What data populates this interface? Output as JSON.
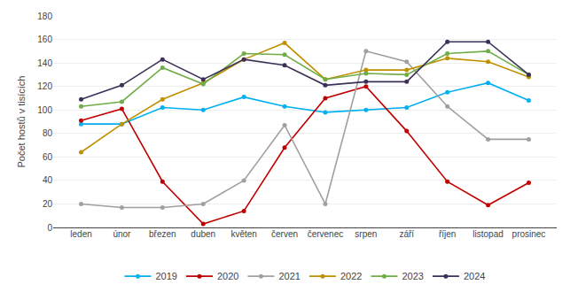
{
  "chart_data": {
    "type": "line",
    "y_label": "Počet hostů v tisících",
    "categories": [
      "leden",
      "únor",
      "březen",
      "duben",
      "květen",
      "červen",
      "červenec",
      "srpen",
      "září",
      "říjen",
      "listopad",
      "prosinec"
    ],
    "series": [
      {
        "name": "2019",
        "color": "#00B0F0",
        "values": [
          88,
          88,
          102,
          100,
          111,
          103,
          98,
          100,
          102,
          115,
          123,
          108
        ]
      },
      {
        "name": "2020",
        "color": "#C00000",
        "values": [
          91,
          101,
          39,
          3,
          14,
          68,
          110,
          120,
          82,
          39,
          19,
          38
        ]
      },
      {
        "name": "2021",
        "color": "#A0A0A0",
        "values": [
          20,
          17,
          17,
          20,
          40,
          87,
          20,
          150,
          141,
          103,
          75,
          75
        ]
      },
      {
        "name": "2022",
        "color": "#C09000",
        "values": [
          64,
          88,
          109,
          123,
          143,
          157,
          126,
          134,
          134,
          144,
          141,
          128
        ]
      },
      {
        "name": "2023",
        "color": "#70AD47",
        "values": [
          103,
          107,
          136,
          122,
          148,
          147,
          126,
          131,
          130,
          148,
          150,
          130
        ]
      },
      {
        "name": "2024",
        "color": "#3D3058",
        "values": [
          109,
          121,
          143,
          126,
          143,
          138,
          121,
          124,
          124,
          158,
          158,
          130
        ]
      }
    ],
    "ylim": [
      0,
      180
    ],
    "yticks": [
      0,
      20,
      40,
      60,
      80,
      100,
      120,
      140,
      160,
      180
    ],
    "grid": true,
    "legend": "bottom",
    "marker": "circle"
  }
}
